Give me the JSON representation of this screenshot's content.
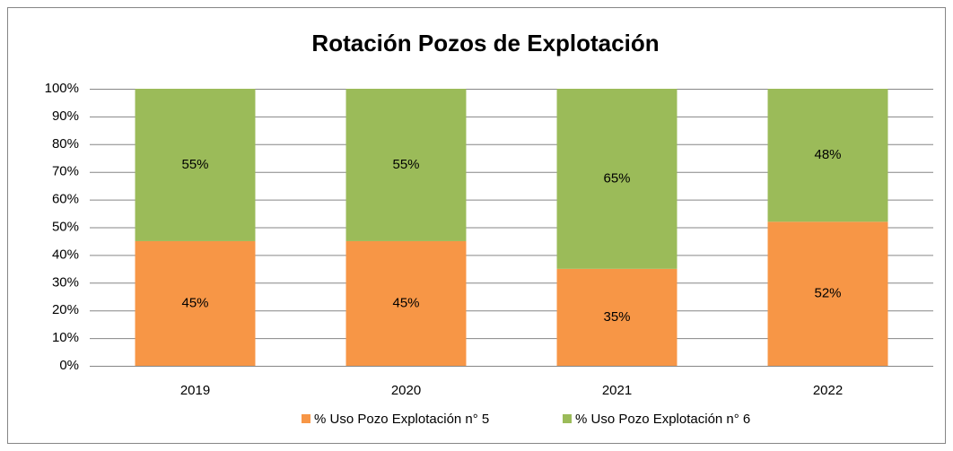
{
  "chart_data": {
    "type": "stacked_bar",
    "title": "Rotación Pozos de Explotación",
    "categories": [
      "2019",
      "2020",
      "2021",
      "2022"
    ],
    "series": [
      {
        "name": "% Uso Pozo Explotación n° 5",
        "color": "#f79646",
        "values": [
          45,
          45,
          35,
          52
        ],
        "value_labels": [
          "45%",
          "45%",
          "35%",
          "52%"
        ]
      },
      {
        "name": "% Uso Pozo Explotación n° 6",
        "color": "#9bbb59",
        "values": [
          55,
          55,
          65,
          48
        ],
        "value_labels": [
          "55%",
          "55%",
          "65%",
          "48%"
        ]
      }
    ],
    "ylim": [
      0,
      100
    ],
    "yticks": [
      {
        "value": 0,
        "label": "0%"
      },
      {
        "value": 10,
        "label": "10%"
      },
      {
        "value": 20,
        "label": "20%"
      },
      {
        "value": 30,
        "label": "30%"
      },
      {
        "value": 40,
        "label": "40%"
      },
      {
        "value": 50,
        "label": "50%"
      },
      {
        "value": 60,
        "label": "60%"
      },
      {
        "value": 70,
        "label": "70%"
      },
      {
        "value": 80,
        "label": "80%"
      },
      {
        "value": 90,
        "label": "90%"
      },
      {
        "value": 100,
        "label": "100%"
      }
    ],
    "grid": true,
    "legend": "bottom"
  }
}
